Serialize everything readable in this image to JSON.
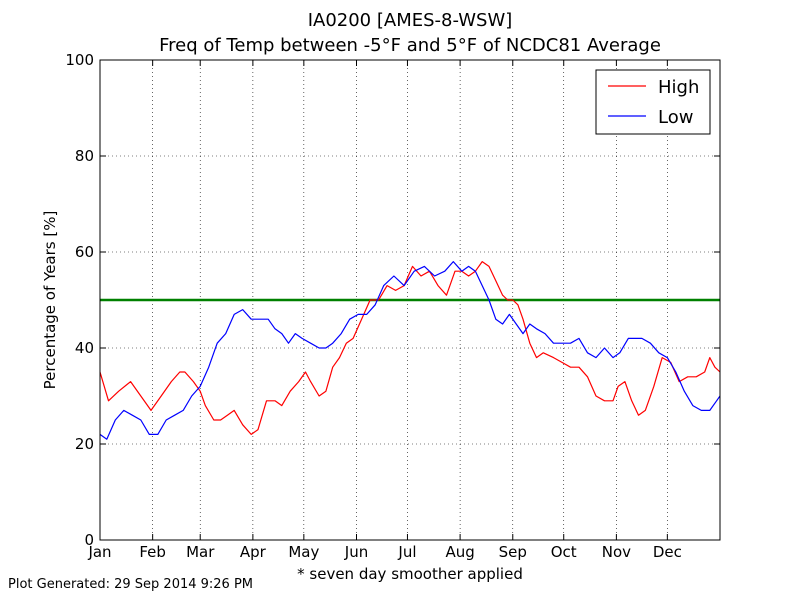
{
  "chart_data": {
    "type": "line",
    "title": "IA0200 [AMES-8-WSW]",
    "subtitle": "Freq of Temp between -5°F and 5°F of NCDC81 Average",
    "ylabel": "Percentage of Years [%]",
    "xlabel": "* seven day smoother applied",
    "ylim": [
      0,
      100
    ],
    "xlim": [
      1,
      366
    ],
    "yticks": [
      0,
      20,
      40,
      60,
      80,
      100
    ],
    "xtick_labels": [
      "Jan",
      "Feb",
      "Mar",
      "Apr",
      "May",
      "Jun",
      "Jul",
      "Aug",
      "Sep",
      "Oct",
      "Nov",
      "Dec"
    ],
    "xtick_days": [
      1,
      32,
      60,
      91,
      121,
      152,
      182,
      213,
      244,
      274,
      305,
      335
    ],
    "grid": true,
    "legend_position": "top-right",
    "reference_line": {
      "value": 50,
      "color": "#008000"
    },
    "series": [
      {
        "name": "High",
        "color": "#ff0000",
        "x": [
          1,
          6,
          12,
          19,
          25,
          31,
          37,
          43,
          48,
          51,
          56,
          60,
          63,
          68,
          72,
          76,
          80,
          85,
          90,
          94,
          99,
          104,
          108,
          113,
          118,
          122,
          125,
          130,
          134,
          138,
          142,
          146,
          150,
          155,
          160,
          165,
          170,
          175,
          180,
          185,
          190,
          195,
          200,
          205,
          210,
          214,
          218,
          222,
          226,
          230,
          234,
          238,
          241,
          244,
          247,
          250,
          254,
          258,
          262,
          268,
          273,
          278,
          283,
          288,
          293,
          298,
          303,
          306,
          310,
          314,
          318,
          322,
          327,
          332,
          337,
          342,
          347,
          352,
          357,
          360,
          363,
          366
        ],
        "y": [
          35,
          29,
          31,
          33,
          30,
          27,
          30,
          33,
          35,
          35,
          33,
          31,
          28,
          25,
          25,
          26,
          27,
          24,
          22,
          23,
          29,
          29,
          28,
          31,
          33,
          35,
          33,
          30,
          31,
          36,
          38,
          41,
          42,
          46,
          50,
          50,
          53,
          52,
          53,
          57,
          55,
          56,
          53,
          51,
          56,
          56,
          55,
          56,
          58,
          57,
          54,
          51,
          50,
          50,
          49,
          46,
          41,
          38,
          39,
          38,
          37,
          36,
          36,
          34,
          30,
          29,
          29,
          32,
          33,
          29,
          26,
          27,
          32,
          38,
          37,
          33,
          34,
          34,
          35,
          38,
          36,
          35
        ]
      },
      {
        "name": "Low",
        "color": "#0000ff",
        "x": [
          1,
          5,
          10,
          15,
          20,
          25,
          30,
          35,
          40,
          45,
          50,
          55,
          60,
          65,
          70,
          75,
          80,
          85,
          90,
          95,
          100,
          104,
          108,
          112,
          116,
          120,
          125,
          130,
          134,
          138,
          143,
          148,
          153,
          158,
          163,
          168,
          174,
          180,
          186,
          192,
          198,
          204,
          209,
          214,
          218,
          222,
          226,
          230,
          234,
          238,
          242,
          246,
          250,
          254,
          258,
          263,
          268,
          273,
          278,
          283,
          288,
          293,
          298,
          303,
          307,
          312,
          316,
          320,
          325,
          330,
          335,
          340,
          345,
          350,
          355,
          360,
          364,
          366
        ],
        "y": [
          22,
          21,
          25,
          27,
          26,
          25,
          22,
          22,
          25,
          26,
          27,
          30,
          32,
          36,
          41,
          43,
          47,
          48,
          46,
          46,
          46,
          44,
          43,
          41,
          43,
          42,
          41,
          40,
          40,
          41,
          43,
          46,
          47,
          47,
          49,
          53,
          55,
          53,
          56,
          57,
          55,
          56,
          58,
          56,
          57,
          56,
          53,
          50,
          46,
          45,
          47,
          45,
          43,
          45,
          44,
          43,
          41,
          41,
          41,
          42,
          39,
          38,
          40,
          38,
          39,
          42,
          42,
          42,
          41,
          39,
          38,
          35,
          31,
          28,
          27,
          27,
          29,
          30
        ]
      }
    ]
  },
  "footer": {
    "generated": "Plot Generated: 29 Sep 2014 9:26 PM"
  }
}
